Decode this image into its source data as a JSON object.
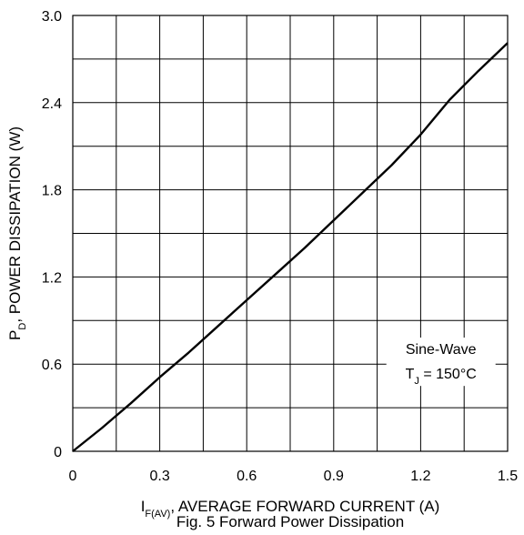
{
  "chart_data": {
    "type": "line",
    "caption": "Fig. 5 Forward Power Dissipation",
    "xlabel": {
      "symbol_main": "I",
      "symbol_sub": "F(AV)",
      "text": ", AVERAGE FORWARD CURRENT (A)"
    },
    "ylabel": {
      "symbol_main": "P",
      "symbol_sub": "D",
      "text": ", POWER DISSIPATION (W)"
    },
    "xlim": [
      0,
      1.5
    ],
    "ylim": [
      0,
      3.0
    ],
    "x_ticks": [
      0,
      0.3,
      0.6,
      0.9,
      1.2,
      1.5
    ],
    "x_tick_labels": [
      "0",
      "0.3",
      "0.6",
      "0.9",
      "1.2",
      "1.5"
    ],
    "y_ticks": [
      0,
      0.6,
      1.2,
      1.8,
      2.4,
      3.0
    ],
    "y_tick_labels": [
      "0",
      "0.6",
      "1.2",
      "1.8",
      "2.4",
      "3.0"
    ],
    "x_minor_step": 0.15,
    "y_minor_step": 0.3,
    "grid": true,
    "annotation": {
      "line1": "Sine-Wave",
      "line2_main": "T",
      "line2_sub": "J",
      "line2_rest": " = 150°C"
    },
    "series": [
      {
        "x": [
          0,
          0.1,
          0.2,
          0.3,
          0.4,
          0.5,
          0.6,
          0.7,
          0.8,
          0.9,
          1.0,
          1.1,
          1.2,
          1.3,
          1.4,
          1.5
        ],
        "y": [
          0,
          0.16,
          0.33,
          0.51,
          0.68,
          0.86,
          1.04,
          1.22,
          1.4,
          1.59,
          1.78,
          1.97,
          2.18,
          2.42,
          2.62,
          2.81
        ]
      }
    ]
  }
}
